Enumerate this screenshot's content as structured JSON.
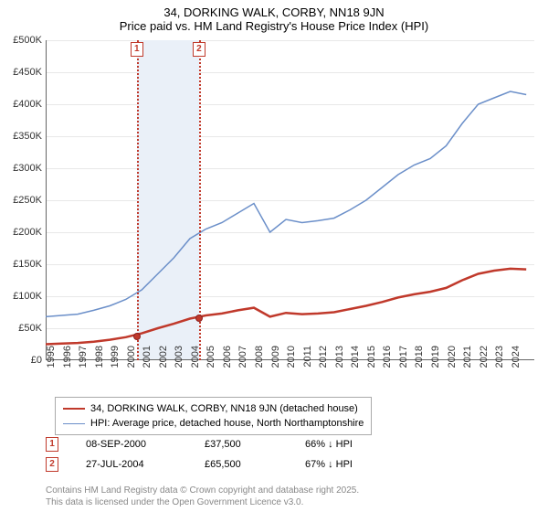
{
  "title_line1": "34, DORKING WALK, CORBY, NN18 9JN",
  "title_line2": "Price paid vs. HM Land Registry's House Price Index (HPI)",
  "chart": {
    "type": "line",
    "x_years": [
      1995,
      1996,
      1997,
      1998,
      1999,
      2000,
      2001,
      2002,
      2003,
      2004,
      2005,
      2006,
      2007,
      2008,
      2009,
      2010,
      2011,
      2012,
      2013,
      2014,
      2015,
      2016,
      2017,
      2018,
      2019,
      2020,
      2021,
      2022,
      2023,
      2024
    ],
    "xlim": [
      1995,
      2025.5
    ],
    "ylim": [
      0,
      500000
    ],
    "ytick_step": 50000,
    "ytick_labels": [
      "£0",
      "£50K",
      "£100K",
      "£150K",
      "£200K",
      "£250K",
      "£300K",
      "£350K",
      "£400K",
      "£450K",
      "£500K"
    ],
    "grid_color": "#e8e8e8",
    "background_color": "#ffffff",
    "shade_color": "#eaf0f8",
    "shade_x": [
      2000.69,
      2004.57
    ],
    "series_hpi": {
      "label": "HPI: Average price, detached house, North Northamptonshire",
      "color": "#6b8fc9",
      "width": 1.5,
      "points": [
        [
          1995,
          68000
        ],
        [
          1996,
          70000
        ],
        [
          1997,
          72000
        ],
        [
          1998,
          78000
        ],
        [
          1999,
          85000
        ],
        [
          2000,
          95000
        ],
        [
          2001,
          110000
        ],
        [
          2002,
          135000
        ],
        [
          2003,
          160000
        ],
        [
          2004,
          190000
        ],
        [
          2005,
          205000
        ],
        [
          2006,
          215000
        ],
        [
          2007,
          230000
        ],
        [
          2008,
          245000
        ],
        [
          2009,
          200000
        ],
        [
          2010,
          220000
        ],
        [
          2011,
          215000
        ],
        [
          2012,
          218000
        ],
        [
          2013,
          222000
        ],
        [
          2014,
          235000
        ],
        [
          2015,
          250000
        ],
        [
          2016,
          270000
        ],
        [
          2017,
          290000
        ],
        [
          2018,
          305000
        ],
        [
          2019,
          315000
        ],
        [
          2020,
          335000
        ],
        [
          2021,
          370000
        ],
        [
          2022,
          400000
        ],
        [
          2023,
          410000
        ],
        [
          2024,
          420000
        ],
        [
          2025,
          415000
        ]
      ]
    },
    "series_property": {
      "label": "34, DORKING WALK, CORBY, NN18 9JN (detached house)",
      "color": "#c0392b",
      "width": 2.5,
      "points": [
        [
          1995,
          25000
        ],
        [
          1996,
          26000
        ],
        [
          1997,
          27000
        ],
        [
          1998,
          29000
        ],
        [
          1999,
          32000
        ],
        [
          2000,
          36000
        ],
        [
          2001,
          42000
        ],
        [
          2002,
          50000
        ],
        [
          2003,
          57000
        ],
        [
          2004,
          65000
        ],
        [
          2005,
          70000
        ],
        [
          2006,
          73000
        ],
        [
          2007,
          78000
        ],
        [
          2008,
          82000
        ],
        [
          2009,
          68000
        ],
        [
          2010,
          74000
        ],
        [
          2011,
          72000
        ],
        [
          2012,
          73000
        ],
        [
          2013,
          75000
        ],
        [
          2014,
          80000
        ],
        [
          2015,
          85000
        ],
        [
          2016,
          91000
        ],
        [
          2017,
          98000
        ],
        [
          2018,
          103000
        ],
        [
          2019,
          107000
        ],
        [
          2020,
          113000
        ],
        [
          2021,
          125000
        ],
        [
          2022,
          135000
        ],
        [
          2023,
          140000
        ],
        [
          2024,
          143000
        ],
        [
          2025,
          142000
        ]
      ]
    },
    "markers": [
      {
        "n": "1",
        "x": 2000.69,
        "y": 37500,
        "color": "#c0392b"
      },
      {
        "n": "2",
        "x": 2004.57,
        "y": 65500,
        "color": "#c0392b"
      }
    ]
  },
  "sales": [
    {
      "n": "1",
      "date": "08-SEP-2000",
      "price": "£37,500",
      "diff": "66% ↓ HPI"
    },
    {
      "n": "2",
      "date": "27-JUL-2004",
      "price": "£65,500",
      "diff": "67% ↓ HPI"
    }
  ],
  "footer_line1": "Contains HM Land Registry data © Crown copyright and database right 2025.",
  "footer_line2": "This data is licensed under the Open Government Licence v3.0."
}
